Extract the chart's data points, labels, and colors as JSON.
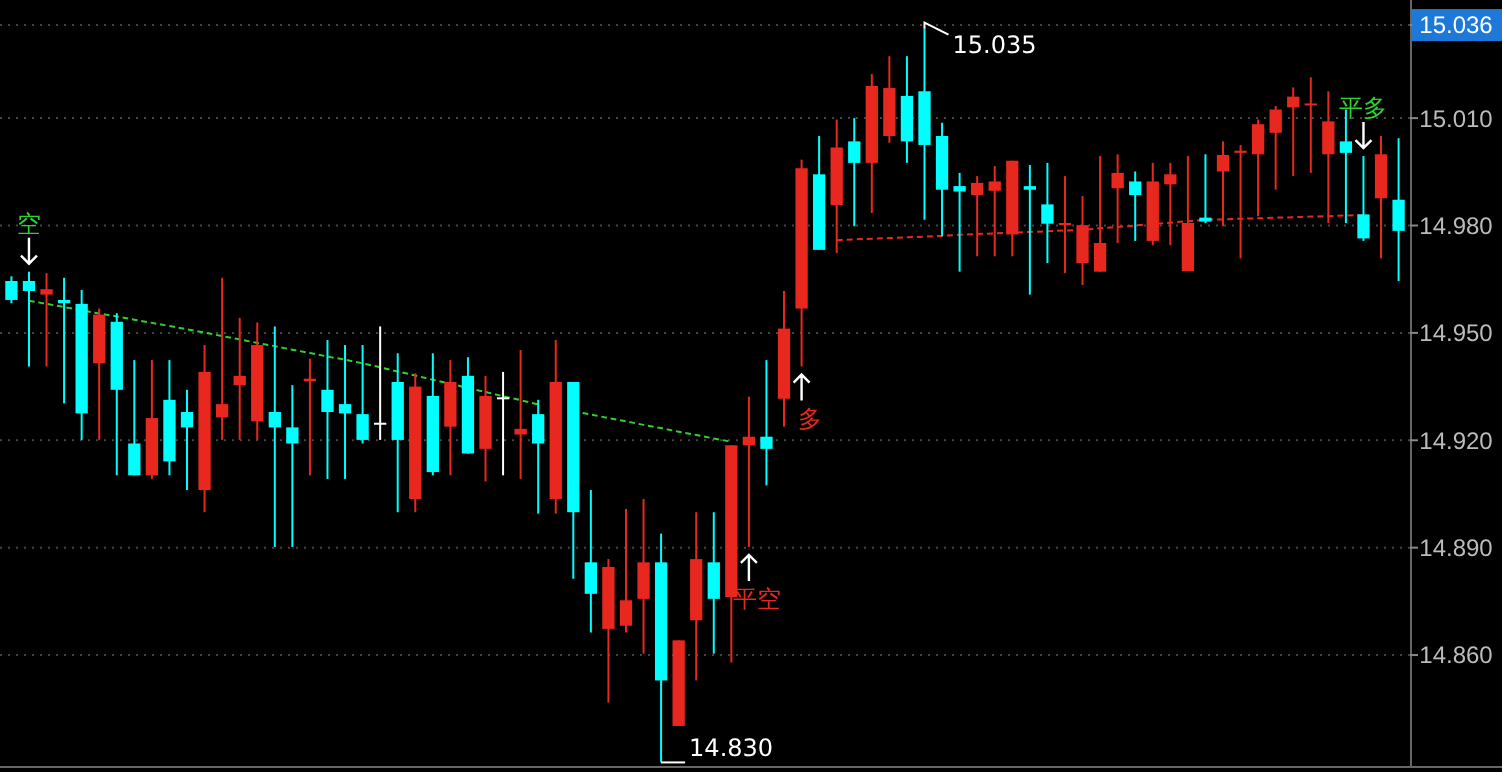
{
  "chart_data": {
    "type": "candlestick",
    "categories": [
      null,
      null,
      null,
      null,
      null,
      null,
      null,
      null,
      null,
      null,
      null,
      null,
      null,
      null,
      null,
      null,
      null,
      null,
      null,
      null,
      null,
      null,
      null,
      null,
      null,
      null,
      null,
      null,
      null,
      null,
      null,
      null,
      null,
      null,
      null,
      null,
      null,
      null,
      null,
      null,
      null,
      null,
      null,
      null,
      null,
      null,
      null,
      null,
      null,
      null,
      null,
      null,
      null,
      null,
      null,
      null,
      null,
      null,
      null,
      null,
      null,
      null,
      null,
      null,
      null,
      null,
      null,
      null,
      null,
      null,
      null,
      null,
      null,
      null,
      null,
      null,
      null,
      null,
      null,
      null
    ],
    "ohlc": [
      [
        14.9645,
        14.9658,
        14.9583,
        14.9592
      ],
      [
        14.9645,
        14.9671,
        14.9406,
        14.9617
      ],
      [
        14.9607,
        14.9667,
        14.9406,
        14.9622
      ],
      [
        14.9592,
        14.9654,
        14.9303,
        14.9583
      ],
      [
        14.9581,
        14.962,
        14.9201,
        14.9275
      ],
      [
        14.9415,
        14.9568,
        14.9201,
        14.9551
      ],
      [
        14.9531,
        14.9555,
        14.9102,
        14.9341
      ],
      [
        14.9191,
        14.9424,
        14.9102,
        14.9102
      ],
      [
        14.9102,
        14.9424,
        14.9092,
        14.9262
      ],
      [
        14.9313,
        14.9424,
        14.9102,
        14.9141
      ],
      [
        14.9279,
        14.9341,
        14.9061,
        14.9236
      ],
      [
        14.9061,
        14.9466,
        14.8999,
        14.9391
      ],
      [
        14.9264,
        14.9654,
        14.9201,
        14.9301
      ],
      [
        14.9354,
        14.9542,
        14.9201,
        14.938
      ],
      [
        14.9253,
        14.9529,
        14.9201,
        14.9466
      ],
      [
        14.9279,
        14.9518,
        14.8902,
        14.9236
      ],
      [
        14.9236,
        14.9354,
        14.8902,
        14.9191
      ],
      [
        14.9365,
        14.9428,
        14.9102,
        14.9372
      ],
      [
        14.9341,
        14.948,
        14.9092,
        14.9279
      ],
      [
        14.9301,
        14.9466,
        14.9092,
        14.9275
      ],
      [
        14.9273,
        14.9466,
        14.9191,
        14.9201
      ],
      [
        14.9249,
        14.9518,
        14.9201,
        14.9249
      ],
      [
        14.9363,
        14.9443,
        14.8999,
        14.9201
      ],
      [
        14.9036,
        14.9387,
        14.8999,
        14.935
      ],
      [
        14.9324,
        14.9443,
        14.9102,
        14.9111
      ],
      [
        14.9238,
        14.9424,
        14.9102,
        14.9363
      ],
      [
        14.938,
        14.9432,
        14.9163,
        14.9163
      ],
      [
        14.9176,
        14.938,
        14.9085,
        14.9324
      ],
      [
        14.932,
        14.9391,
        14.9102,
        14.932
      ],
      [
        14.9216,
        14.9452,
        14.9092,
        14.9232
      ],
      [
        14.9273,
        14.9313,
        14.8995,
        14.9191
      ],
      [
        14.9036,
        14.948,
        14.8995,
        14.9363
      ],
      [
        14.9363,
        14.9363,
        14.8813,
        14.8999
      ],
      [
        14.8859,
        14.9061,
        14.8663,
        14.8771
      ],
      [
        14.8673,
        14.8868,
        14.8467,
        14.8846
      ],
      [
        14.8682,
        14.9008,
        14.8663,
        14.8753
      ],
      [
        14.8757,
        14.9036,
        14.8604,
        14.8859
      ],
      [
        14.8859,
        14.8939,
        14.83,
        14.8529
      ],
      [
        14.8402,
        14.8641,
        14.8402,
        14.8641
      ],
      [
        14.8697,
        14.8999,
        14.8529,
        14.8868
      ],
      [
        14.8859,
        14.8999,
        14.8604,
        14.8757
      ],
      [
        14.8762,
        14.9186,
        14.8579,
        14.9186
      ],
      [
        14.9186,
        14.9322,
        14.8902,
        14.921
      ],
      [
        14.921,
        14.9424,
        14.9074,
        14.9176
      ],
      [
        14.9316,
        14.9617,
        14.9238,
        14.9512
      ],
      [
        14.9568,
        14.9984,
        14.9406,
        14.996
      ],
      [
        14.9943,
        15.005,
        14.9732,
        14.9732
      ],
      [
        14.9857,
        15.0096,
        14.9723,
        15.0018
      ],
      [
        15.0035,
        15.01,
        14.9798,
        14.9975
      ],
      [
        14.9975,
        15.0223,
        14.9835,
        15.019
      ],
      [
        15.005,
        15.0273,
        15.0031,
        15.0184
      ],
      [
        15.0162,
        15.0273,
        14.9975,
        15.0035
      ],
      [
        15.0175,
        15.035,
        14.9816,
        15.0025
      ],
      [
        15.005,
        15.0087,
        14.977,
        14.99
      ],
      [
        14.991,
        14.9947,
        14.9671,
        14.9895
      ],
      [
        14.9885,
        14.9938,
        14.9714,
        14.9919
      ],
      [
        14.9897,
        14.9966,
        14.9714,
        14.9923
      ],
      [
        14.9775,
        14.9981,
        14.9714,
        14.9981
      ],
      [
        14.991,
        14.9969,
        14.9607,
        14.99
      ],
      [
        14.9859,
        14.9975,
        14.9695,
        14.9805
      ],
      [
        14.9803,
        14.9938,
        14.9667,
        14.9807
      ],
      [
        14.9695,
        14.9882,
        14.9634,
        14.9801
      ],
      [
        14.9671,
        14.9994,
        14.9671,
        14.9751
      ],
      [
        14.9904,
        14.9999,
        14.9751,
        14.9947
      ],
      [
        14.9923,
        14.9951,
        14.9757,
        14.9885
      ],
      [
        14.9757,
        14.9975,
        14.9745,
        14.9923
      ],
      [
        14.9915,
        14.9975,
        14.9745,
        14.9943
      ],
      [
        14.9673,
        14.9994,
        14.9673,
        14.9807
      ],
      [
        14.9822,
        14.9999,
        14.9807,
        14.9811
      ],
      [
        14.9951,
        15.0035,
        14.9798,
        14.9997
      ],
      [
        15.0003,
        15.0025,
        14.9708,
        15.0009
      ],
      [
        14.9999,
        15.0096,
        14.9826,
        15.0083
      ],
      [
        15.0059,
        15.0134,
        14.99,
        15.0124
      ],
      [
        15.013,
        15.0186,
        14.9938,
        15.016
      ],
      [
        15.0137,
        15.0214,
        14.9947,
        15.0141
      ],
      [
        14.9999,
        15.0175,
        14.9807,
        15.0091
      ],
      [
        15.0035,
        15.0124,
        14.9807,
        15.0003
      ],
      [
        14.9831,
        14.9994,
        14.9757,
        14.9764
      ],
      [
        14.9876,
        15.005,
        14.9708,
        14.9999
      ],
      [
        14.9872,
        15.0044,
        14.9645,
        14.9785
      ]
    ],
    "colors": [
      "#00ffff",
      "#00ffff",
      "#e8281e",
      "#00ffff",
      "#00ffff",
      "#e8281e",
      "#00ffff",
      "#00ffff",
      "#e8281e",
      "#00ffff",
      "#00ffff",
      "#e8281e",
      "#e8281e",
      "#e8281e",
      "#e8281e",
      "#00ffff",
      "#00ffff",
      "#e8281e",
      "#00ffff",
      "#00ffff",
      "#00ffff",
      "#ffffff",
      "#00ffff",
      "#e8281e",
      "#00ffff",
      "#e8281e",
      "#00ffff",
      "#e8281e",
      "#ffffff",
      "#e8281e",
      "#00ffff",
      "#e8281e",
      "#00ffff",
      "#00ffff",
      "#e8281e",
      "#e8281e",
      "#e8281e",
      "#00ffff",
      "#e8281e",
      "#e8281e",
      "#00ffff",
      "#e8281e",
      "#e8281e",
      "#00ffff",
      "#e8281e",
      "#e8281e",
      "#00ffff",
      "#e8281e",
      "#00ffff",
      "#e8281e",
      "#e8281e",
      "#00ffff",
      "#00ffff",
      "#00ffff",
      "#00ffff",
      "#e8281e",
      "#e8281e",
      "#e8281e",
      "#00ffff",
      "#00ffff",
      "#e8281e",
      "#e8281e",
      "#e8281e",
      "#e8281e",
      "#00ffff",
      "#e8281e",
      "#e8281e",
      "#e8281e",
      "#00ffff",
      "#e8281e",
      "#e8281e",
      "#e8281e",
      "#e8281e",
      "#e8281e",
      "#e8281e",
      "#e8281e",
      "#00ffff",
      "#00ffff",
      "#e8281e",
      "#00ffff"
    ],
    "series": [
      {
        "type": "line",
        "color": "#2fd12f",
        "line_style": "dashed",
        "values": [
          null,
          14.959,
          14.9581,
          14.9572,
          14.9563,
          14.9554,
          14.9546,
          14.9537,
          14.9528,
          14.9519,
          14.951,
          14.9501,
          14.9491,
          14.9482,
          14.9472,
          14.9463,
          14.9453,
          14.9444,
          14.9434,
          14.9425,
          14.9415,
          14.9404,
          14.9392,
          14.9381,
          14.9369,
          14.9358,
          14.9346,
          14.9335,
          14.9323,
          14.9312,
          14.93,
          null,
          14.9281,
          14.9272,
          14.9262,
          14.9253,
          14.9243,
          14.9234,
          14.9224,
          14.9215,
          14.9205,
          14.9196,
          null,
          null,
          null,
          null,
          null,
          null,
          null,
          null,
          null,
          null,
          null,
          null,
          null,
          null,
          null,
          null,
          null,
          null,
          null,
          null,
          null,
          null,
          null,
          null,
          null,
          null,
          null,
          null,
          null,
          null,
          null,
          null,
          null,
          null,
          null,
          null,
          null,
          null
        ]
      },
      {
        "type": "line",
        "color": "#e8281e",
        "line_style": "dashed",
        "values": [
          null,
          null,
          null,
          null,
          null,
          null,
          null,
          null,
          null,
          null,
          null,
          null,
          null,
          null,
          null,
          null,
          null,
          null,
          null,
          null,
          null,
          null,
          null,
          null,
          null,
          null,
          null,
          null,
          null,
          null,
          null,
          null,
          null,
          null,
          null,
          null,
          null,
          null,
          null,
          null,
          null,
          null,
          null,
          null,
          null,
          null,
          null,
          14.9759,
          14.9761,
          14.9763,
          14.9765,
          14.9767,
          14.9769,
          14.9771,
          14.9774,
          14.9776,
          14.9778,
          14.978,
          14.9782,
          14.9784,
          14.9786,
          14.9788,
          14.9792,
          14.9796,
          14.98,
          14.9804,
          14.9808,
          14.9812,
          14.9816,
          14.9817,
          14.9819,
          14.982,
          14.9822,
          14.9823,
          14.9825,
          14.9826,
          14.9828,
          14.9829,
          null,
          null
        ]
      }
    ],
    "ylim": [
      14.829,
      15.043
    ],
    "yticks": [
      {
        "value": 14.86,
        "label": "14.860"
      },
      {
        "value": 14.89,
        "label": "14.890"
      },
      {
        "value": 14.92,
        "label": "14.920"
      },
      {
        "value": 14.95,
        "label": "14.950"
      },
      {
        "value": 14.98,
        "label": "14.980"
      },
      {
        "value": 15.01,
        "label": "15.010"
      },
      {
        "value": 15.036,
        "label": "15.036"
      }
    ],
    "tick_labels": "y",
    "grid": "y",
    "annotations": [
      "空",
      "平空",
      "多",
      "平多",
      "15.035",
      "14.830"
    ]
  }
}
